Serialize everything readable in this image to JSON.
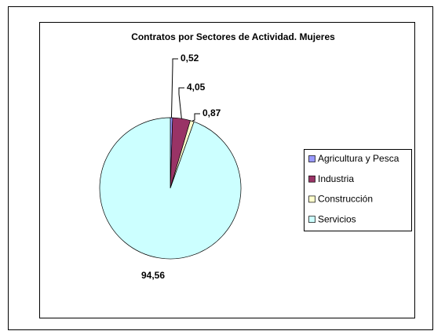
{
  "chart_data": {
    "type": "pie",
    "title": "Contratos por Sectores de Actividad. Mujeres",
    "categories": [
      "Agricultura y Pesca",
      "Industria",
      "Construcción",
      "Servicios"
    ],
    "values": [
      0.52,
      4.05,
      0.87,
      94.56
    ],
    "value_labels": [
      "0,52",
      "4,05",
      "0,87",
      "94,56"
    ],
    "colors": [
      "#9999ff",
      "#993366",
      "#ffffcc",
      "#ccffff"
    ],
    "legend": "right"
  }
}
